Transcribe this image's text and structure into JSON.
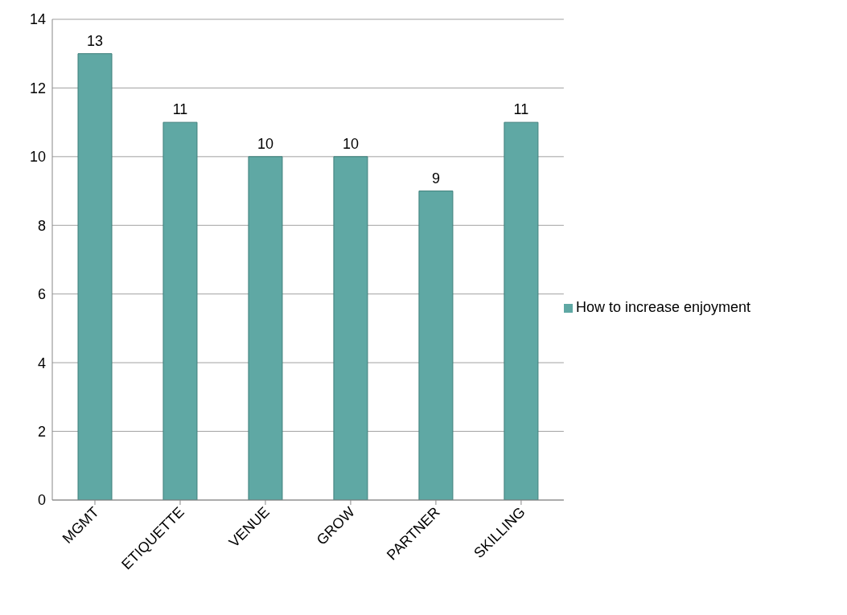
{
  "chart_data": {
    "type": "bar",
    "categories": [
      "MGMT",
      "ETIQUETTE",
      "VENUE",
      "GROW",
      "PARTNER",
      "SKILLING"
    ],
    "series": [
      {
        "name": "How to increase enjoyment",
        "color": "#5fa8a4",
        "values": [
          13,
          11,
          10,
          10,
          9,
          11
        ]
      }
    ],
    "ylim": [
      0,
      14
    ],
    "yticks": [
      0,
      2,
      4,
      6,
      8,
      10,
      12,
      14
    ],
    "grid": "y",
    "legend": "right",
    "data_labels": true
  }
}
